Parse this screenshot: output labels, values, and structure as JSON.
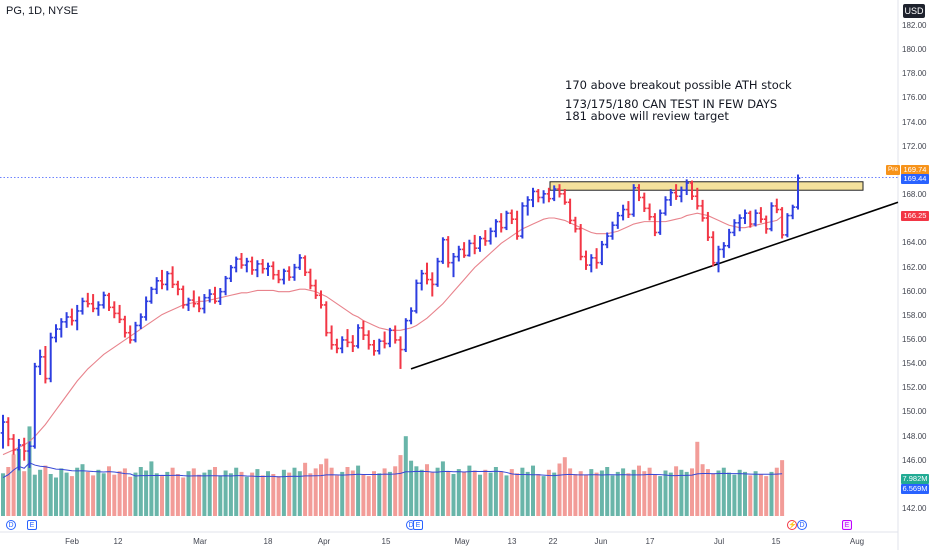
{
  "header": {
    "symbol_line": "PG, 1D, NYSE",
    "currency": "USD"
  },
  "annotations": [
    "170 above breakout possible ATH stock",
    "173/175/180 CAN TEST IN FEW DAYS",
    "181 above will review target"
  ],
  "price_labels": {
    "pre": "Pre",
    "current": "169.74",
    "last": "169.44",
    "ma": "166.25",
    "volume": "7.982M",
    "volume_ma": "6.569M"
  },
  "events": {
    "dividend": "D",
    "earnings": "E"
  },
  "colors": {
    "up": "#2d3ee0",
    "down": "#f23645",
    "ma": "#e8838c",
    "vol_up": "#4fa89a",
    "vol_down": "#f08b86",
    "vol_ma": "#3748d6",
    "zone_fill": "#f4e19c",
    "trendline": "#000000",
    "guide": "#3d5afe",
    "current_label": "#f7931a",
    "last_label": "#2962ff",
    "ma_label": "#f23645",
    "volume_label": "#22ab94",
    "volume_ma_label": "#2962ff"
  },
  "chart_data": {
    "type": "bar",
    "title": "PG, 1D, NYSE",
    "ylim": [
      142,
      182
    ],
    "y_ticks": [
      "182.00",
      "180.00",
      "178.00",
      "176.00",
      "174.00",
      "172.00",
      "170.00",
      "168.00",
      "166.00",
      "164.00",
      "162.00",
      "160.00",
      "158.00",
      "156.00",
      "154.00",
      "152.00",
      "150.00",
      "148.00",
      "146.00",
      "144.00",
      "142.00"
    ],
    "x_ticks": [
      "Feb",
      "12",
      "Mar",
      "18",
      "Apr",
      "15",
      "May",
      "13",
      "22",
      "Jun",
      "17",
      "Jul",
      "15",
      "Aug"
    ],
    "ohlc": [
      [
        148.3,
        149.8,
        147.0,
        149.2
      ],
      [
        149.2,
        149.6,
        147.2,
        147.8
      ],
      [
        147.8,
        148.2,
        146.5,
        146.9
      ],
      [
        146.9,
        147.8,
        145.2,
        147.3
      ],
      [
        147.3,
        147.9,
        146.0,
        146.8
      ],
      [
        146.8,
        147.6,
        145.4,
        147.2
      ],
      [
        147.2,
        154.1,
        147.0,
        153.8
      ],
      [
        153.8,
        155.2,
        153.1,
        154.6
      ],
      [
        154.6,
        155.5,
        152.4,
        152.8
      ],
      [
        152.8,
        156.6,
        152.5,
        156.2
      ],
      [
        156.2,
        157.3,
        155.8,
        156.9
      ],
      [
        156.9,
        157.8,
        156.2,
        157.5
      ],
      [
        157.5,
        158.3,
        157.0,
        157.9
      ],
      [
        157.9,
        158.6,
        157.2,
        157.6
      ],
      [
        157.6,
        158.9,
        156.8,
        158.4
      ],
      [
        158.4,
        159.5,
        158.1,
        159.2
      ],
      [
        159.2,
        159.9,
        158.7,
        159.0
      ],
      [
        159.0,
        159.8,
        158.3,
        158.6
      ],
      [
        158.6,
        159.2,
        158.0,
        158.9
      ],
      [
        158.9,
        160.0,
        158.6,
        159.7
      ],
      [
        159.7,
        159.9,
        158.4,
        158.7
      ],
      [
        158.7,
        159.2,
        157.8,
        158.2
      ],
      [
        158.2,
        158.9,
        157.4,
        157.7
      ],
      [
        157.7,
        158.0,
        156.2,
        156.6
      ],
      [
        156.6,
        157.2,
        155.7,
        156.0
      ],
      [
        156.0,
        157.5,
        155.8,
        157.2
      ],
      [
        157.2,
        158.2,
        156.9,
        157.9
      ],
      [
        157.9,
        159.6,
        157.6,
        159.2
      ],
      [
        159.2,
        160.4,
        159.0,
        160.2
      ],
      [
        160.2,
        161.2,
        159.8,
        160.9
      ],
      [
        160.9,
        161.8,
        160.2,
        160.6
      ],
      [
        160.6,
        161.7,
        160.1,
        161.5
      ],
      [
        161.5,
        162.1,
        160.3,
        160.6
      ],
      [
        160.6,
        160.9,
        159.7,
        160.2
      ],
      [
        160.2,
        160.5,
        158.6,
        158.9
      ],
      [
        158.9,
        159.5,
        158.4,
        159.3
      ],
      [
        159.3,
        160.1,
        158.7,
        159.0
      ],
      [
        159.0,
        159.6,
        158.3,
        158.6
      ],
      [
        158.6,
        159.8,
        158.2,
        159.5
      ],
      [
        159.5,
        160.2,
        159.1,
        159.8
      ],
      [
        159.8,
        160.4,
        159.0,
        159.2
      ],
      [
        159.2,
        160.3,
        158.9,
        160.0
      ],
      [
        160.0,
        161.3,
        159.7,
        161.1
      ],
      [
        161.1,
        162.2,
        160.8,
        162.0
      ],
      [
        162.0,
        162.9,
        161.6,
        162.7
      ],
      [
        162.7,
        163.2,
        161.9,
        162.2
      ],
      [
        162.2,
        162.8,
        161.6,
        162.5
      ],
      [
        162.5,
        162.9,
        161.4,
        161.8
      ],
      [
        161.8,
        162.6,
        161.2,
        162.3
      ],
      [
        162.3,
        162.7,
        161.5,
        161.9
      ],
      [
        161.9,
        162.4,
        161.3,
        162.1
      ],
      [
        162.1,
        162.5,
        161.0,
        161.4
      ],
      [
        161.4,
        161.8,
        160.7,
        161.0
      ],
      [
        161.0,
        161.9,
        160.6,
        161.7
      ],
      [
        161.7,
        162.1,
        160.9,
        161.2
      ],
      [
        161.2,
        162.3,
        160.9,
        162.0
      ],
      [
        162.0,
        163.1,
        161.8,
        162.8
      ],
      [
        162.8,
        163.0,
        161.3,
        161.6
      ],
      [
        161.6,
        161.9,
        160.2,
        160.5
      ],
      [
        160.5,
        161.0,
        159.4,
        159.7
      ],
      [
        159.7,
        160.1,
        158.6,
        158.9
      ],
      [
        158.9,
        159.2,
        156.3,
        156.6
      ],
      [
        156.6,
        157.2,
        155.2,
        155.6
      ],
      [
        155.6,
        156.1,
        154.9,
        155.3
      ],
      [
        155.3,
        156.3,
        154.9,
        156.0
      ],
      [
        156.0,
        156.9,
        155.4,
        155.8
      ],
      [
        155.8,
        156.4,
        155.0,
        155.5
      ],
      [
        155.5,
        157.3,
        155.3,
        157.0
      ],
      [
        157.0,
        157.6,
        156.0,
        156.4
      ],
      [
        156.4,
        156.8,
        155.2,
        155.6
      ],
      [
        155.6,
        156.0,
        154.7,
        155.1
      ],
      [
        155.1,
        156.1,
        154.8,
        155.9
      ],
      [
        155.9,
        156.7,
        155.3,
        155.7
      ],
      [
        155.7,
        157.0,
        155.4,
        156.8
      ],
      [
        156.8,
        157.2,
        155.7,
        156.0
      ],
      [
        156.0,
        156.3,
        153.6,
        155.2
      ],
      [
        155.2,
        157.8,
        155.0,
        157.6
      ],
      [
        157.6,
        158.7,
        157.3,
        158.4
      ],
      [
        158.4,
        161.0,
        158.2,
        160.7
      ],
      [
        160.7,
        161.8,
        160.1,
        161.5
      ],
      [
        161.5,
        162.4,
        160.6,
        161.0
      ],
      [
        161.0,
        161.6,
        159.6,
        160.6
      ],
      [
        160.6,
        162.8,
        160.4,
        162.5
      ],
      [
        162.5,
        164.5,
        162.3,
        164.3
      ],
      [
        164.3,
        164.6,
        162.0,
        162.4
      ],
      [
        162.4,
        163.2,
        161.2,
        162.9
      ],
      [
        162.9,
        163.8,
        162.5,
        163.5
      ],
      [
        163.5,
        164.1,
        162.8,
        163.0
      ],
      [
        163.0,
        164.3,
        162.9,
        164.0
      ],
      [
        164.0,
        164.7,
        163.1,
        163.6
      ],
      [
        163.6,
        164.6,
        163.3,
        164.4
      ],
      [
        164.4,
        165.1,
        163.8,
        164.2
      ],
      [
        164.2,
        165.3,
        163.9,
        165.0
      ],
      [
        165.0,
        166.0,
        164.5,
        165.8
      ],
      [
        165.8,
        166.5,
        164.9,
        165.3
      ],
      [
        165.3,
        166.7,
        165.1,
        166.5
      ],
      [
        166.5,
        166.8,
        165.6,
        166.0
      ],
      [
        166.0,
        166.7,
        164.3,
        164.6
      ],
      [
        164.6,
        167.4,
        164.4,
        167.1
      ],
      [
        167.1,
        167.9,
        166.3,
        167.6
      ],
      [
        167.6,
        168.6,
        167.0,
        168.3
      ],
      [
        168.3,
        168.5,
        167.4,
        167.8
      ],
      [
        167.8,
        168.4,
        167.3,
        168.1
      ],
      [
        168.1,
        168.6,
        167.4,
        167.7
      ],
      [
        167.7,
        168.8,
        167.5,
        168.5
      ],
      [
        168.5,
        168.9,
        167.8,
        168.1
      ],
      [
        168.1,
        168.5,
        167.2,
        167.4
      ],
      [
        167.4,
        167.7,
        165.6,
        165.9
      ],
      [
        165.9,
        166.2,
        164.9,
        165.2
      ],
      [
        165.2,
        165.6,
        162.6,
        162.9
      ],
      [
        162.9,
        163.4,
        161.8,
        162.2
      ],
      [
        162.2,
        163.1,
        161.6,
        162.8
      ],
      [
        162.8,
        163.6,
        161.9,
        162.4
      ],
      [
        162.4,
        164.2,
        162.2,
        163.9
      ],
      [
        163.9,
        164.9,
        163.6,
        164.6
      ],
      [
        164.6,
        165.8,
        164.3,
        165.5
      ],
      [
        165.5,
        166.6,
        165.2,
        166.3
      ],
      [
        166.3,
        167.2,
        165.9,
        166.8
      ],
      [
        166.8,
        167.5,
        166.1,
        166.4
      ],
      [
        166.4,
        168.9,
        166.2,
        168.6
      ],
      [
        168.6,
        168.9,
        167.5,
        167.8
      ],
      [
        167.8,
        168.2,
        166.6,
        166.9
      ],
      [
        166.9,
        167.3,
        165.9,
        166.2
      ],
      [
        166.2,
        166.5,
        164.6,
        164.9
      ],
      [
        164.9,
        166.8,
        164.7,
        166.5
      ],
      [
        166.5,
        167.9,
        166.3,
        167.6
      ],
      [
        167.6,
        168.5,
        167.1,
        168.2
      ],
      [
        168.2,
        168.9,
        167.6,
        167.9
      ],
      [
        167.9,
        168.7,
        167.4,
        168.4
      ],
      [
        168.4,
        169.3,
        168.0,
        169.0
      ],
      [
        169.0,
        169.2,
        167.6,
        167.9
      ],
      [
        167.9,
        168.6,
        166.8,
        167.1
      ],
      [
        167.1,
        167.6,
        165.8,
        166.1
      ],
      [
        166.1,
        166.6,
        164.2,
        164.5
      ],
      [
        164.5,
        165.0,
        162.1,
        162.4
      ],
      [
        162.4,
        163.8,
        161.6,
        163.5
      ],
      [
        163.5,
        164.1,
        162.8,
        163.8
      ],
      [
        163.8,
        165.2,
        163.6,
        164.9
      ],
      [
        164.9,
        166.0,
        164.6,
        165.7
      ],
      [
        165.7,
        166.4,
        165.0,
        166.1
      ],
      [
        166.1,
        166.8,
        165.6,
        166.5
      ],
      [
        166.5,
        166.7,
        165.3,
        165.6
      ],
      [
        165.6,
        166.8,
        165.4,
        166.5
      ],
      [
        166.5,
        167.0,
        165.7,
        166.0
      ],
      [
        166.0,
        166.3,
        164.8,
        165.2
      ],
      [
        165.2,
        167.4,
        165.0,
        167.1
      ],
      [
        167.1,
        167.7,
        166.5,
        166.8
      ],
      [
        166.8,
        167.0,
        164.4,
        164.7
      ],
      [
        164.7,
        166.5,
        164.5,
        166.3
      ],
      [
        166.3,
        167.2,
        166.0,
        167.0
      ],
      [
        167.0,
        169.7,
        166.8,
        169.4
      ]
    ],
    "volume_millions": [
      6.1,
      7.0,
      8.8,
      9.6,
      6.4,
      12.8,
      5.9,
      6.6,
      7.2,
      6.0,
      5.5,
      6.8,
      6.2,
      5.7,
      6.9,
      7.4,
      6.3,
      5.8,
      6.6,
      6.1,
      7.1,
      5.9,
      6.4,
      6.8,
      5.6,
      6.2,
      7.0,
      6.5,
      7.8,
      6.1,
      5.7,
      6.3,
      6.9,
      6.0,
      5.5,
      6.4,
      6.8,
      5.9,
      6.2,
      6.6,
      7.0,
      5.8,
      6.5,
      6.1,
      6.9,
      6.3,
      5.6,
      6.2,
      6.7,
      5.8,
      6.4,
      6.0,
      5.7,
      6.6,
      6.2,
      6.9,
      6.4,
      7.6,
      6.1,
      6.8,
      7.4,
      8.2,
      6.9,
      5.8,
      6.3,
      7.0,
      6.5,
      7.2,
      6.0,
      5.7,
      6.4,
      6.1,
      6.8,
      6.3,
      7.1,
      8.7,
      11.4,
      7.9,
      7.1,
      6.6,
      7.4,
      6.2,
      6.9,
      7.8,
      6.4,
      6.0,
      6.7,
      6.3,
      7.2,
      6.5,
      5.9,
      6.6,
      6.2,
      7.0,
      6.4,
      5.8,
      6.7,
      6.1,
      6.9,
      6.3,
      7.2,
      6.0,
      5.7,
      6.6,
      6.2,
      7.5,
      8.4,
      6.8,
      6.0,
      6.4,
      5.9,
      6.7,
      6.2,
      6.5,
      7.0,
      5.8,
      6.3,
      6.8,
      6.1,
      6.6,
      7.2,
      6.4,
      6.9,
      6.0,
      5.7,
      6.5,
      6.2,
      7.1,
      6.6,
      6.3,
      6.8,
      10.6,
      7.4,
      6.7,
      6.1,
      6.5,
      6.9,
      6.2,
      5.9,
      6.6,
      6.3,
      5.8,
      6.4,
      6.0,
      5.7,
      6.3,
      6.9,
      7.98
    ],
    "ma_values": [
      146.5,
      146.7,
      146.9,
      147.1,
      147.3,
      147.6,
      148.0,
      148.5,
      149.0,
      149.6,
      150.2,
      150.8,
      151.4,
      152.0,
      152.6,
      153.1,
      153.6,
      154.0,
      154.4,
      154.8,
      155.1,
      155.4,
      155.7,
      156.0,
      156.3,
      156.6,
      156.9,
      157.2,
      157.5,
      157.8,
      158.1,
      158.3,
      158.5,
      158.7,
      158.9,
      159.0,
      159.1,
      159.2,
      159.2,
      159.3,
      159.4,
      159.5,
      159.6,
      159.7,
      159.8,
      159.9,
      159.9,
      160.0,
      160.1,
      160.1,
      160.1,
      160.1,
      160.0,
      160.0,
      160.0,
      160.1,
      160.2,
      160.2,
      160.1,
      160.0,
      159.8,
      159.6,
      159.3,
      159.0,
      158.7,
      158.4,
      158.1,
      157.9,
      157.6,
      157.4,
      157.2,
      157.0,
      156.9,
      156.8,
      156.8,
      156.8,
      156.9,
      157.0,
      157.2,
      157.5,
      157.8,
      158.2,
      158.6,
      159.0,
      159.5,
      160.0,
      160.5,
      161.0,
      161.5,
      162.0,
      162.4,
      162.8,
      163.2,
      163.6,
      164.0,
      164.3,
      164.6,
      164.9,
      165.2,
      165.4,
      165.6,
      165.8,
      166.0,
      166.1,
      166.1,
      166.0,
      165.9,
      165.7,
      165.5,
      165.3,
      165.1,
      164.9,
      164.8,
      164.8,
      164.8,
      164.9,
      165.0,
      165.2,
      165.4,
      165.6,
      165.7,
      165.8,
      165.8,
      165.8,
      165.8,
      165.8,
      165.9,
      166.0,
      166.1,
      166.3,
      166.4,
      166.5,
      166.4,
      166.3,
      166.1,
      165.9,
      165.7,
      165.5,
      165.4,
      165.3,
      165.3,
      165.4,
      165.5,
      165.6,
      165.7,
      165.8,
      165.9,
      166.25
    ],
    "resistance_zone": [
      169.1,
      168.4
    ],
    "trendline_from": [
      "Apr 19",
      153.6
    ],
    "trendline_to": [
      "Aug",
      167.4
    ]
  }
}
